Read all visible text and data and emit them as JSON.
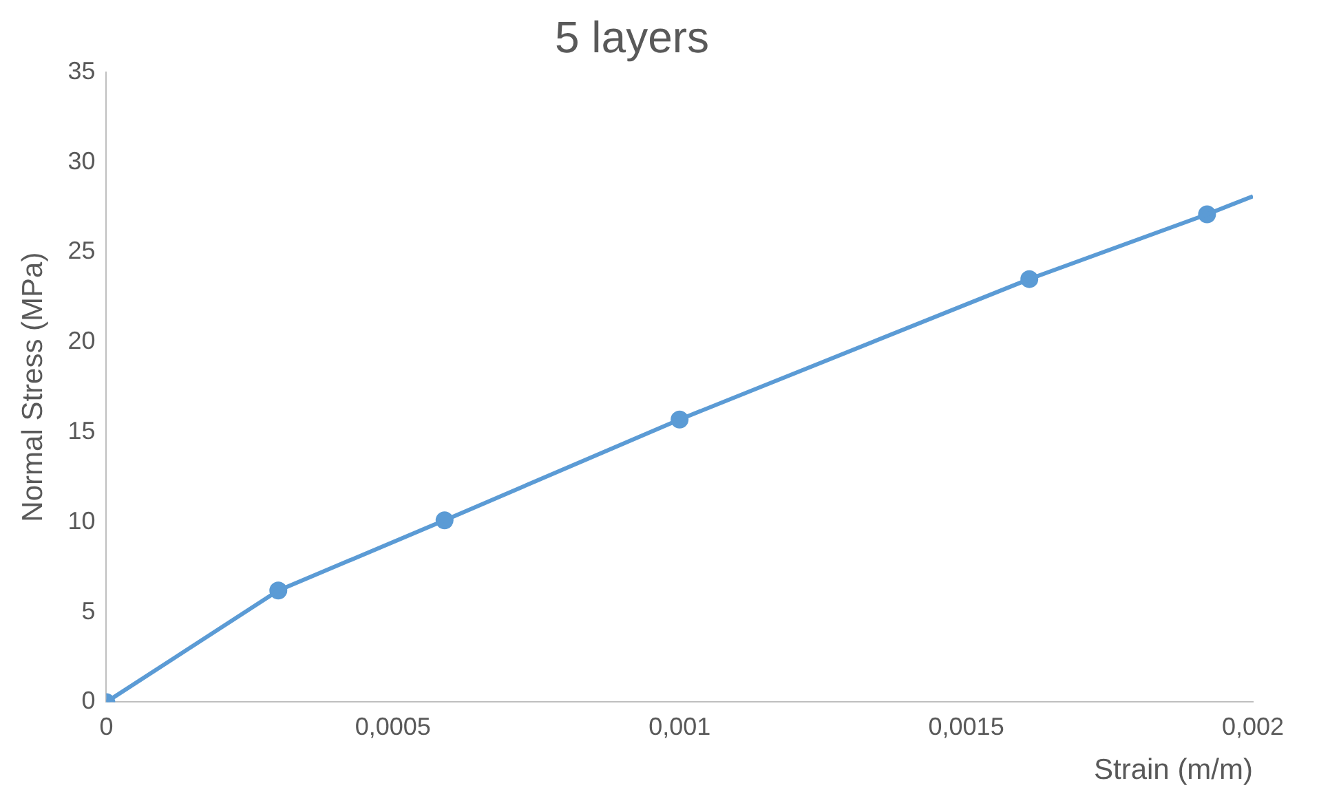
{
  "chart_data": {
    "type": "line",
    "title": "5 layers",
    "xlabel": "Strain (m/m)",
    "ylabel": "Normal Stress (MPa)",
    "xlim": [
      0,
      0.002
    ],
    "xticks": [
      0,
      {
        "value": 0.0005,
        "label": "0,0005"
      },
      {
        "value": 0.001,
        "label": "0,001"
      },
      {
        "value": 0.0015,
        "label": "0,0015"
      },
      {
        "value": 0.002,
        "label": "0,002"
      }
    ],
    "ylim": [
      0,
      35
    ],
    "yticks": [
      0,
      5,
      10,
      15,
      20,
      25,
      30,
      35
    ],
    "grid": false,
    "legend": false,
    "series": [
      {
        "type": "line",
        "marker": "none",
        "color": "#5b9bd5",
        "x": [
          0,
          0.0003,
          0.00059,
          0.001,
          0.00161,
          0.00192,
          0.002
        ],
        "values": [
          0,
          6.2,
          10.1,
          15.7,
          23.5,
          27.1,
          28.1
        ]
      },
      {
        "type": "scatter",
        "marker": "circle",
        "color": "#5b9bd5",
        "x": [
          0,
          0.0003,
          0.00059,
          0.001,
          0.00161,
          0.00192
        ],
        "values": [
          0,
          6.2,
          10.1,
          15.7,
          23.5,
          27.1
        ]
      }
    ]
  }
}
